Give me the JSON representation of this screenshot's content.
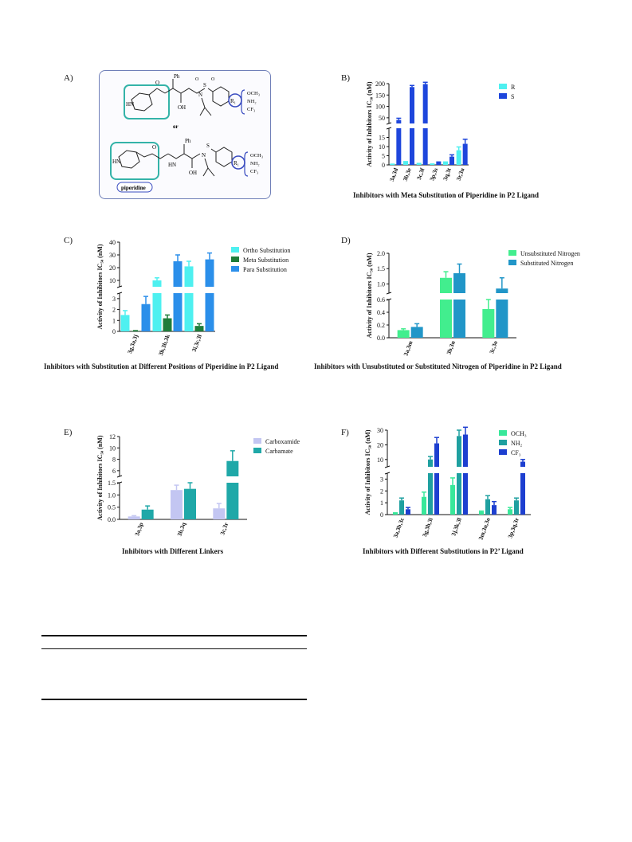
{
  "panels": {
    "A": "A)",
    "B": "B)",
    "C": "C)",
    "D": "D)",
    "E": "E)",
    "F": "F)"
  },
  "scheme": {
    "or_label": "or",
    "ph_label": "Ph",
    "oh_label": "OH",
    "nh_label": "HN",
    "n_label": "N",
    "s_label": "S",
    "o_label": "O",
    "r1_label": "R₁",
    "substituents": [
      "OCH₃",
      "NH₂",
      "CF₃"
    ],
    "tag": "piperidine",
    "colors": {
      "highlight": "#34b3a8",
      "circle": "#3a4cc0",
      "bracket": "#3a4cc0"
    }
  },
  "chart_data": [
    {
      "id": "B",
      "type": "bar",
      "title": "Inhibitors with Meta Substitution of Piperidine in P2 Ligand",
      "ylabel": "Activity of Inhibitors IC₅₀ (nM)",
      "categories": [
        "3a,3d",
        "3b,3e",
        "3c,3f",
        "3p,3s",
        "3q,3t",
        "3r,3u"
      ],
      "axis_break": {
        "lower": [
          0,
          20
        ],
        "upper": [
          25,
          200
        ]
      },
      "yticks_lower": [
        0,
        5,
        10,
        15
      ],
      "yticks_upper": [
        50,
        100,
        150,
        200
      ],
      "series": [
        {
          "name": "R",
          "color": "#4ef0f0",
          "values": [
            0.3,
            1.5,
            0.6,
            0.4,
            1.3,
            8.0
          ],
          "errors": [
            0.1,
            0.3,
            0.2,
            0.1,
            0.3,
            1.8
          ]
        },
        {
          "name": "S",
          "color": "#1e46dc",
          "values": [
            40,
            185,
            198,
            1.3,
            4.5,
            11.5
          ],
          "errors": [
            8,
            7,
            8,
            0.3,
            1.0,
            2.5
          ]
        }
      ],
      "legend": "top-right"
    },
    {
      "id": "C",
      "type": "bar",
      "title": "Inhibitors with Substitution at Different Positions of Piperidine in P2 Ligand",
      "ylabel": "Activity of Inhibitors IC₅₀ (nM)",
      "categories": [
        "3g,3a,3j",
        "3h,3b,3k",
        "3i,3c,3l"
      ],
      "axis_break": {
        "lower": [
          0,
          3.5
        ],
        "upper": [
          5,
          40
        ]
      },
      "yticks_lower": [
        0,
        1,
        2,
        3
      ],
      "yticks_upper": [
        10,
        20,
        30,
        40
      ],
      "series": [
        {
          "name": "Ortho Substitution",
          "color": "#4ef0f0",
          "values": [
            1.5,
            10,
            21
          ],
          "errors": [
            0.4,
            2,
            4
          ]
        },
        {
          "name": "Meta Substitution",
          "color": "#1f7d3a",
          "values": [
            0.05,
            1.2,
            0.5
          ],
          "errors": [
            0.02,
            0.3,
            0.2
          ]
        },
        {
          "name": "Para Substitution",
          "color": "#2b8fea",
          "values": [
            2.5,
            25,
            26.5
          ],
          "errors": [
            0.7,
            5,
            5
          ]
        }
      ],
      "legend": "top-right"
    },
    {
      "id": "D",
      "type": "bar",
      "title": "Inhibitors with Unsubstituted or Substituted Nitrogen of Piperidine in P2 Ligand",
      "ylabel": "Activity of Inhibitors IC₅₀ (nM)",
      "categories": [
        "3a,3m",
        "3b,3n",
        "3c,3o"
      ],
      "axis_break": {
        "lower": [
          0,
          0.6
        ],
        "upper": [
          0.7,
          2.0
        ]
      },
      "yticks_lower": [
        0.0,
        0.2,
        0.4,
        0.6
      ],
      "yticks_upper": [
        1.0,
        1.5,
        2.0
      ],
      "series": [
        {
          "name": "Unsubstituted Nitrogen",
          "color": "#42ee8e",
          "values": [
            0.12,
            1.2,
            0.45
          ],
          "errors": [
            0.02,
            0.2,
            0.15
          ]
        },
        {
          "name": "Substituted Nitrogen",
          "color": "#2196c8",
          "values": [
            0.17,
            1.35,
            0.85
          ],
          "errors": [
            0.05,
            0.3,
            0.35
          ]
        }
      ],
      "legend": "top-right"
    },
    {
      "id": "E",
      "type": "bar",
      "title": "Inhibitors with Different Linkers",
      "ylabel": "Activity of Inhibitors IC₅₀ (nM)",
      "categories": [
        "3a,3p",
        "3b,3q",
        "3c,3r"
      ],
      "axis_break": {
        "lower": [
          0,
          1.5
        ],
        "upper": [
          5,
          12
        ]
      },
      "yticks_lower": [
        0.0,
        0.5,
        1.0,
        1.5
      ],
      "yticks_upper": [
        6,
        8,
        10,
        12
      ],
      "series": [
        {
          "name": "Carboxamide",
          "color": "#c3c6f2",
          "values": [
            0.12,
            1.2,
            0.45
          ],
          "errors": [
            0.03,
            0.2,
            0.2
          ]
        },
        {
          "name": "Carbamate",
          "color": "#1fa8a8",
          "values": [
            0.4,
            1.25,
            7.7
          ],
          "errors": [
            0.15,
            0.25,
            1.8
          ]
        }
      ],
      "legend": "top-right"
    },
    {
      "id": "F",
      "type": "bar",
      "title": "Inhibitors with Different Substitutions in P2’ Ligand",
      "ylabel": "Activity of Inhibitors IC₅₀ (nM)",
      "categories": [
        "3a,3b,3c",
        "3g,3h,3i",
        "3j,3k,3l",
        "3m,3n,3o",
        "3p,3q,3r"
      ],
      "axis_break": {
        "lower": [
          0,
          3.5
        ],
        "upper": [
          5,
          30
        ]
      },
      "yticks_lower": [
        0,
        1,
        2,
        3
      ],
      "yticks_upper": [
        10,
        20,
        30
      ],
      "series": [
        {
          "name": "OCH₃",
          "color": "#38e89a",
          "values": [
            0.12,
            1.5,
            2.5,
            0.25,
            0.45
          ],
          "errors": [
            0.03,
            0.4,
            0.6,
            0.05,
            0.15
          ]
        },
        {
          "name": "NH₂",
          "color": "#1fa0a0",
          "values": [
            1.2,
            10,
            26,
            1.3,
            1.2
          ],
          "errors": [
            0.2,
            2,
            4,
            0.3,
            0.2
          ]
        },
        {
          "name": "CF₃",
          "color": "#1d3fd0",
          "values": [
            0.45,
            21,
            27,
            0.8,
            8.5
          ],
          "errors": [
            0.15,
            4,
            5,
            0.3,
            1.5
          ]
        }
      ],
      "legend": "top-right"
    }
  ]
}
